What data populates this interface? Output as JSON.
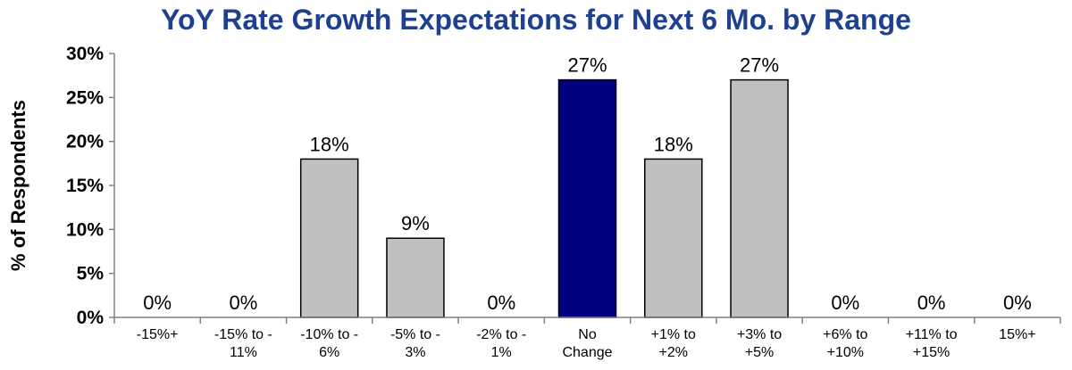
{
  "chart_data": {
    "type": "bar",
    "title": "YoY Rate Growth Expectations for Next 6 Mo. by Range",
    "xlabel": "",
    "ylabel": "% of Respondents",
    "ylim": [
      0,
      30
    ],
    "yticks": [
      "0%",
      "5%",
      "10%",
      "15%",
      "20%",
      "25%",
      "30%"
    ],
    "ytick_values": [
      0,
      5,
      10,
      15,
      20,
      25,
      30
    ],
    "categories": [
      [
        "-15%+"
      ],
      [
        "-15% to -",
        "11%"
      ],
      [
        "-10% to -",
        "6%"
      ],
      [
        "-5% to -",
        "3%"
      ],
      [
        "-2% to -",
        "1%"
      ],
      [
        "No",
        "Change"
      ],
      [
        "+1% to",
        "+2%"
      ],
      [
        "+3% to",
        "+5%"
      ],
      [
        "+6% to",
        "+10%"
      ],
      [
        "+11% to",
        "+15%"
      ],
      [
        "15%+"
      ]
    ],
    "values": [
      0,
      0,
      18,
      9,
      0,
      27,
      18,
      27,
      0,
      0,
      0
    ],
    "data_labels": [
      "0%",
      "0%",
      "18%",
      "9%",
      "0%",
      "27%",
      "18%",
      "27%",
      "0%",
      "0%",
      "0%"
    ],
    "highlight_index": 5,
    "colors": {
      "bar": "#c0c0c0",
      "highlight": "#000080",
      "bar_stroke": "#000000",
      "axis": "#808080",
      "title": "#1f3f8f"
    },
    "grid": false,
    "legend": "none"
  }
}
